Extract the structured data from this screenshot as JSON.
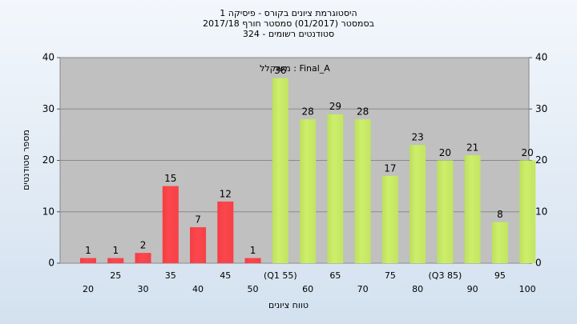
{
  "chart_data": {
    "type": "bar",
    "title_lines": [
      "היסטוגרמת ציונים בקורס - פיסיקה 1",
      "בסמסטר  (01/2017)  סמסטר חורף 2017/18",
      "324 - סטודנטים רשומים"
    ],
    "annotation": "משוקלל : Final_A",
    "x_label": "טווח ציונים",
    "y_label": "מספר סטודנטים",
    "categories": [
      "20",
      "25",
      "30",
      "35",
      "40",
      "45",
      "50",
      "(Q1 55)",
      "60",
      "65",
      "70",
      "75",
      "80",
      "(Q3 85)",
      "90",
      "95",
      "100"
    ],
    "values": [
      1,
      1,
      2,
      15,
      7,
      12,
      1,
      36,
      28,
      29,
      28,
      17,
      23,
      20,
      21,
      8,
      20
    ],
    "colors": [
      "#e0262a",
      "#e0262a",
      "#e0262a",
      "#e0262a",
      "#e0262a",
      "#e0262a",
      "#e0262a",
      "#8ebd3c",
      "#8ebd3c",
      "#8ebd3c",
      "#8ebd3c",
      "#8ebd3c",
      "#8ebd3c",
      "#8ebd3c",
      "#8ebd3c",
      "#8ebd3c",
      "#8ebd3c"
    ],
    "ylim": [
      0,
      40
    ],
    "yticks": [
      0,
      10,
      20,
      30,
      40
    ],
    "y2lim": [
      0,
      40
    ],
    "y2ticks": [
      0,
      10,
      20,
      30,
      40
    ],
    "grid": true
  }
}
